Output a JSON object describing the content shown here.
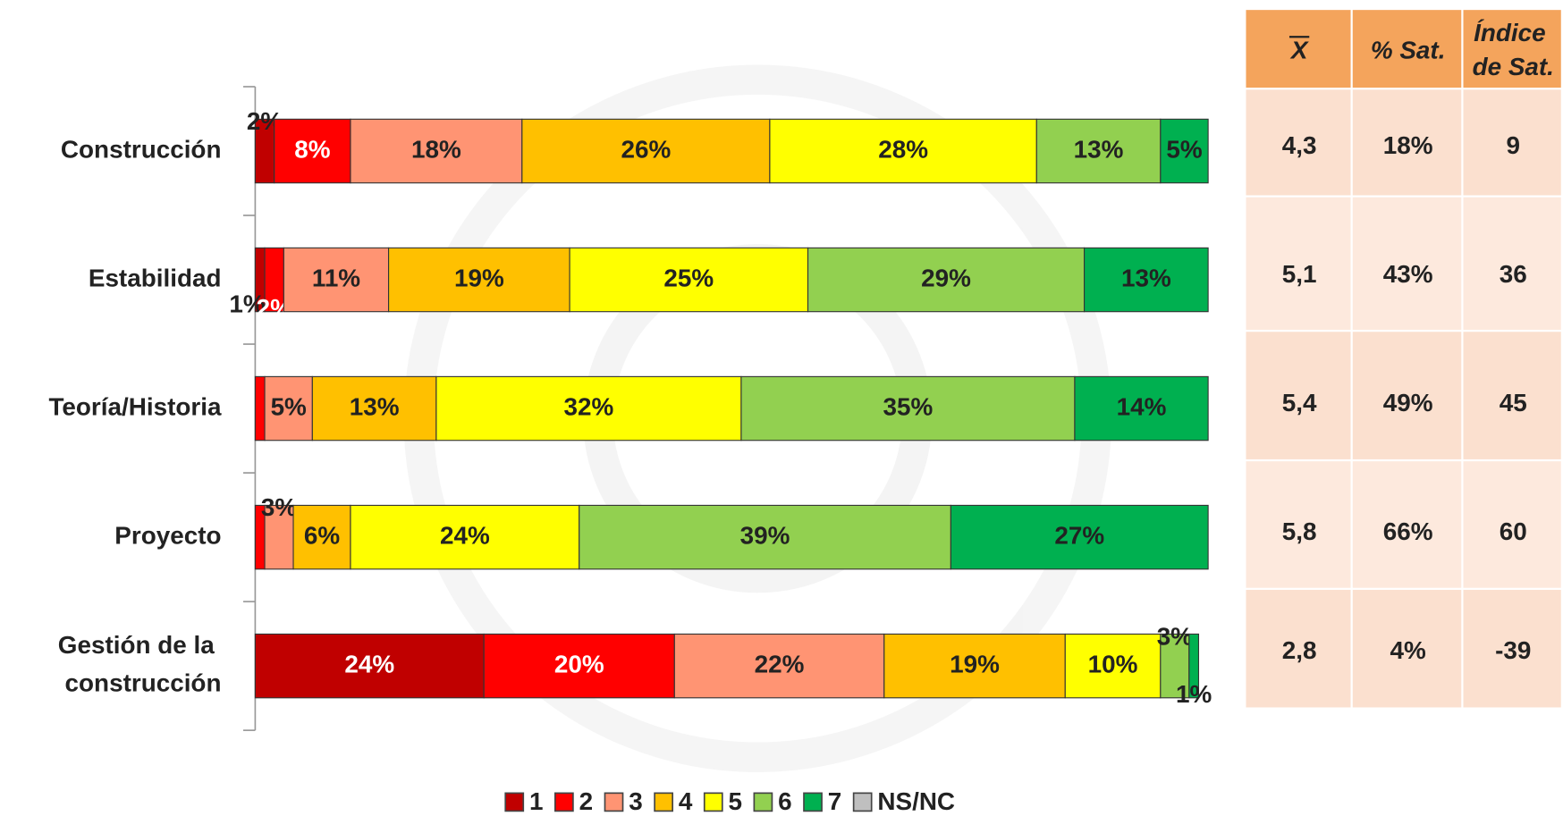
{
  "chart_data": {
    "type": "stacked-bar-horizontal",
    "categories": [
      "Construcción",
      "Estabilidad",
      "Teoría/Historia",
      "Proyecto",
      "Gestión de la construcción"
    ],
    "xlim": [
      0,
      100
    ],
    "series": [
      {
        "name": "1",
        "color": "#c00000",
        "values": [
          2,
          1,
          0,
          0,
          24
        ],
        "value_labels": [
          "2%",
          "1%",
          null,
          null,
          "24%"
        ]
      },
      {
        "name": "2",
        "color": "#ff0000",
        "values": [
          8,
          2,
          1,
          1,
          20
        ],
        "value_labels": [
          "8%",
          "2%",
          null,
          null,
          "20%"
        ]
      },
      {
        "name": "3",
        "color": "#ff9473",
        "values": [
          18,
          11,
          5,
          3,
          22
        ],
        "value_labels": [
          "18%",
          "11%",
          "5%",
          "3%",
          "22%"
        ]
      },
      {
        "name": "4",
        "color": "#ffc000",
        "values": [
          26,
          19,
          13,
          6,
          19
        ],
        "value_labels": [
          "26%",
          "19%",
          "13%",
          "6%",
          "19%"
        ]
      },
      {
        "name": "5",
        "color": "#ffff00",
        "values": [
          28,
          25,
          32,
          24,
          10
        ],
        "value_labels": [
          "28%",
          "25%",
          "32%",
          "24%",
          "10%"
        ]
      },
      {
        "name": "6",
        "color": "#92d050",
        "values": [
          13,
          29,
          35,
          39,
          3
        ],
        "value_labels": [
          "13%",
          "29%",
          "35%",
          "39%",
          "3%"
        ]
      },
      {
        "name": "7",
        "color": "#00b050",
        "values": [
          5,
          13,
          14,
          27,
          1
        ],
        "value_labels": [
          "5%",
          "13%",
          "14%",
          "27%",
          "1%"
        ]
      },
      {
        "name": "NS/NC",
        "color": "#bfbfbf",
        "values": [
          0,
          0,
          0,
          0,
          0
        ],
        "value_labels": [
          null,
          null,
          null,
          null,
          null
        ]
      }
    ]
  },
  "table": {
    "headers": [
      "X",
      "% Sat.",
      "Índice de Sat."
    ],
    "rows": [
      [
        "4,3",
        "18%",
        "9"
      ],
      [
        "5,1",
        "43%",
        "36"
      ],
      [
        "5,4",
        "49%",
        "45"
      ],
      [
        "5,8",
        "66%",
        "60"
      ],
      [
        "2,8",
        "4%",
        "-39"
      ]
    ]
  }
}
